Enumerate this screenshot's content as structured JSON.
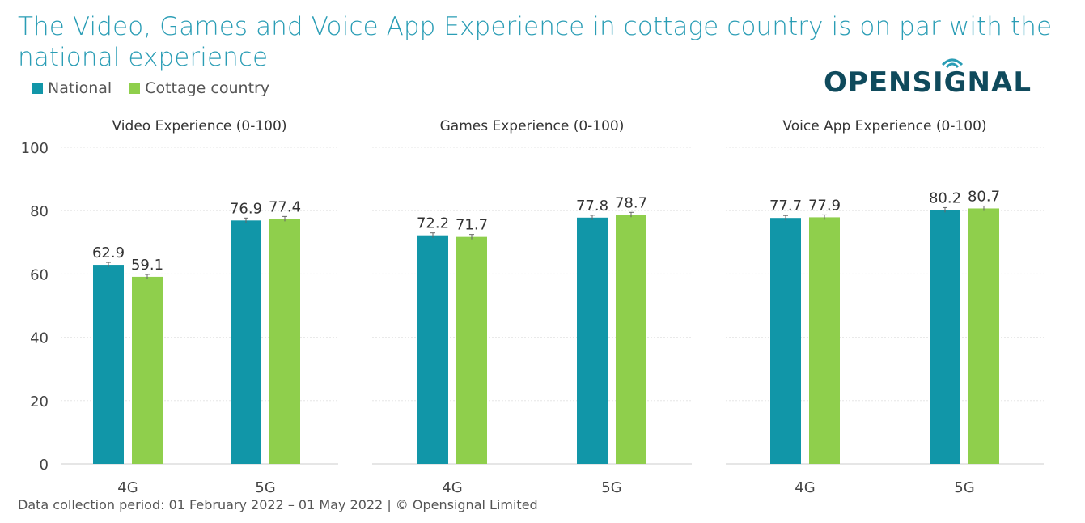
{
  "title": "The Video, Games and Voice App Experience in cottage country is on par with the national experience",
  "logo": "OPENSIGNAL",
  "footer": "Data collection period: 01 February 2022 – 01 May 2022  |  © Opensignal Limited",
  "legend": [
    {
      "label": "National",
      "color": "#1196a8"
    },
    {
      "label": "Cottage country",
      "color": "#8fcf4c"
    }
  ],
  "chart_data": [
    {
      "type": "bar",
      "title": "Video Experience (0-100)",
      "categories": [
        "4G",
        "5G"
      ],
      "series": [
        {
          "name": "National",
          "values": [
            62.9,
            76.9
          ]
        },
        {
          "name": "Cottage country",
          "values": [
            59.1,
            77.4
          ]
        }
      ],
      "ylim": [
        0,
        100
      ],
      "yticks": [
        "0",
        "20",
        "40",
        "60",
        "80",
        "100"
      ],
      "grid": true,
      "legend": "top-left"
    },
    {
      "type": "bar",
      "title": "Games Experience (0-100)",
      "categories": [
        "4G",
        "5G"
      ],
      "series": [
        {
          "name": "National",
          "values": [
            72.2,
            77.8
          ]
        },
        {
          "name": "Cottage country",
          "values": [
            71.7,
            78.7
          ]
        }
      ],
      "ylim": [
        0,
        100
      ],
      "grid": true
    },
    {
      "type": "bar",
      "title": "Voice App Experience (0-100)",
      "categories": [
        "4G",
        "5G"
      ],
      "series": [
        {
          "name": "National",
          "values": [
            77.7,
            80.2
          ]
        },
        {
          "name": "Cottage country",
          "values": [
            77.9,
            80.7
          ]
        }
      ],
      "ylim": [
        0,
        100
      ],
      "grid": true
    }
  ]
}
